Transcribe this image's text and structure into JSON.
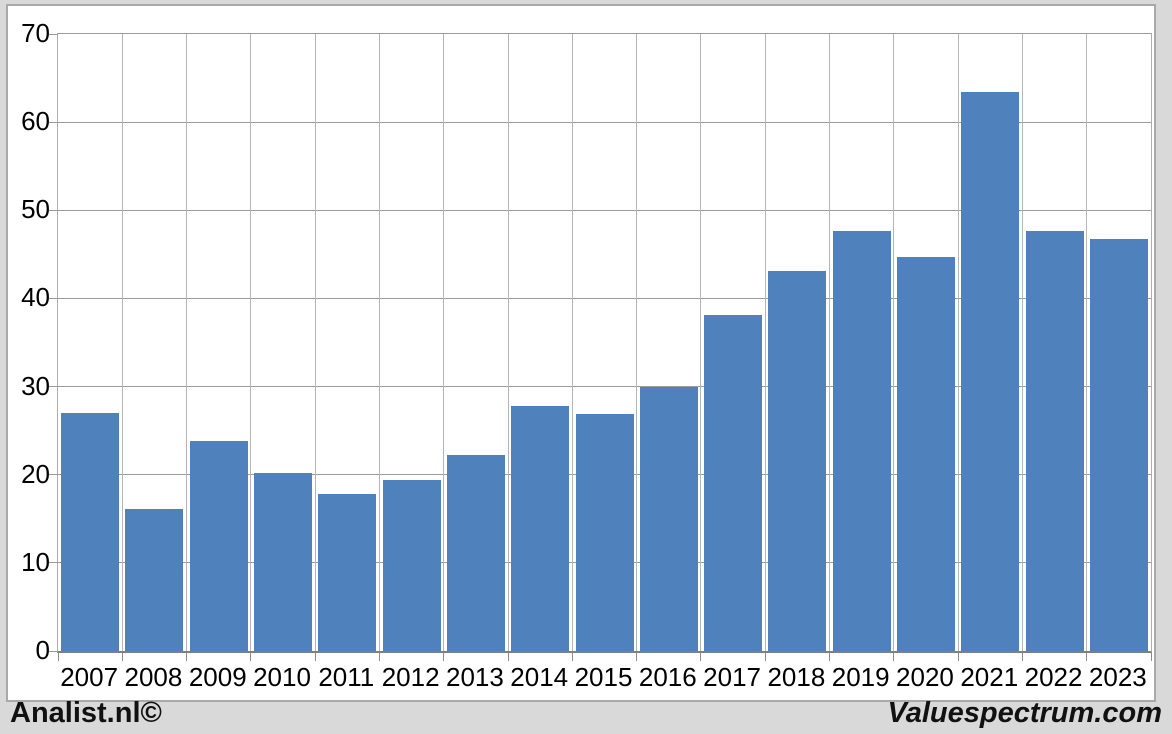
{
  "branding": {
    "left": "Analist.nl©",
    "right": "Valuespectrum.com"
  },
  "chart_data": {
    "type": "bar",
    "title": "",
    "xlabel": "",
    "ylabel": "",
    "categories": [
      "2007",
      "2008",
      "2009",
      "2010",
      "2011",
      "2012",
      "2013",
      "2014",
      "2015",
      "2016",
      "2017",
      "2018",
      "2019",
      "2020",
      "2021",
      "2022",
      "2023"
    ],
    "values": [
      27.0,
      16.1,
      23.8,
      20.2,
      17.8,
      19.4,
      22.2,
      27.8,
      26.9,
      30.0,
      38.1,
      43.1,
      47.7,
      44.7,
      63.4,
      47.6,
      46.7
    ],
    "ylim": [
      0,
      70
    ],
    "y_ticks": [
      0,
      10,
      20,
      30,
      40,
      50,
      60,
      70
    ],
    "grid": "both",
    "legend_position": "none",
    "colors": {
      "bar_fill": "#4f81bd",
      "horizontal_gridline": "#9b9b9b",
      "vertical_gridline": "#b5b5b5",
      "axis_line": "#7f7f7f",
      "plot_background": "#ffffff",
      "outer_background": "#d9d9d9",
      "frame_border": "#a9a9a9",
      "text": "#000000"
    }
  }
}
